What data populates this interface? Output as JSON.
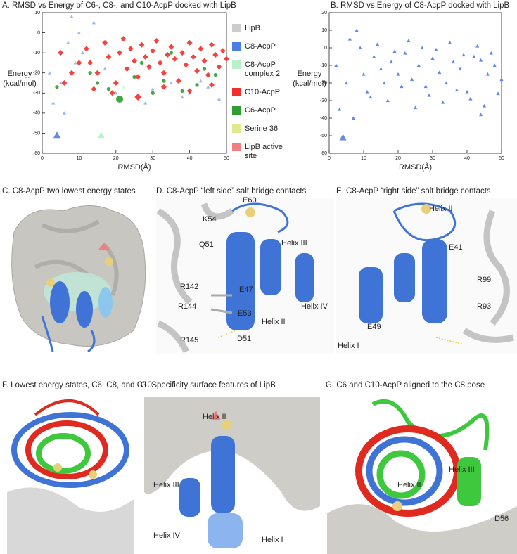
{
  "chart_data": [
    {
      "type": "scatter",
      "title": "A. RMSD vs Energy of C6-, C8-, and C10-AcpP docked with LipB",
      "xlabel": "RMSD(Å)",
      "ylabel": [
        "Energy",
        "(kcal/mol)"
      ],
      "xlim": [
        0,
        50
      ],
      "xticks": [
        0,
        10,
        20,
        30,
        40,
        50
      ],
      "ylim": [
        -60,
        10
      ],
      "yticks": [
        -60,
        -50,
        -40,
        -30,
        -20,
        -10,
        0,
        10
      ],
      "legend": "right",
      "series": [
        {
          "name": "LipB",
          "color": "#cccccc",
          "marker": "square",
          "x": [],
          "values": []
        },
        {
          "name": "C8-AcpP",
          "color": "#4a7fe6",
          "marker": "triangle",
          "x": [
            4,
            3,
            5,
            7,
            8,
            6,
            9,
            2,
            11,
            14,
            20,
            25,
            30,
            35,
            40,
            45,
            48,
            17,
            28,
            38,
            43,
            10
          ],
          "values": [
            -51,
            -35,
            -25,
            -5,
            8,
            -40,
            -15,
            -20,
            -10,
            5,
            -30,
            -22,
            -28,
            -25,
            -30,
            -27,
            -33,
            -18,
            -35,
            -32,
            -24,
            0
          ]
        },
        {
          "name": "C8-AcpP complex 2",
          "color": "#b8f0c8",
          "marker": "triangle",
          "x": [
            16,
            14,
            22,
            30,
            42
          ],
          "values": [
            -51,
            -30,
            -27,
            -29,
            -26
          ]
        },
        {
          "name": "C10-AcpP",
          "color": "#f0302a",
          "marker": "diamond",
          "x": [
            12,
            13,
            15,
            17,
            18,
            20,
            21,
            22,
            23,
            24,
            25,
            26,
            27,
            28,
            29,
            30,
            31,
            32,
            33,
            34,
            35,
            36,
            37,
            38,
            39,
            40,
            41,
            42,
            43,
            44,
            45,
            46,
            47,
            48,
            49,
            50,
            14,
            19,
            26,
            33,
            40,
            46,
            8,
            10,
            5,
            6
          ],
          "values": [
            -8,
            -15,
            -20,
            -5,
            -12,
            -25,
            -10,
            -3,
            -18,
            -8,
            -14,
            -22,
            -6,
            -12,
            -17,
            -9,
            -4,
            -15,
            -20,
            -11,
            -7,
            -13,
            -24,
            -10,
            -16,
            -5,
            -12,
            -19,
            -8,
            -14,
            -21,
            -6,
            -11,
            -17,
            -9,
            -13,
            -28,
            -30,
            -32,
            -27,
            -29,
            -26,
            -20,
            -15,
            -10,
            -25
          ]
        },
        {
          "name": "C6-AcpP",
          "color": "#2e9e2e",
          "marker": "circle",
          "x": [
            4,
            13,
            15,
            18,
            21,
            25,
            30,
            33,
            38,
            42,
            47,
            27,
            35,
            44
          ],
          "values": [
            -27,
            -20,
            -25,
            -28,
            -33,
            -22,
            -30,
            -24,
            -29,
            -26,
            -21,
            -15,
            -10,
            -18
          ]
        },
        {
          "name": "Serine 36",
          "color": "#e3e88e",
          "marker": "square",
          "x": [],
          "values": []
        },
        {
          "name": "LipB active site",
          "color": "#f08080",
          "marker": "square",
          "x": [],
          "values": []
        }
      ]
    },
    {
      "type": "scatter",
      "title": "B. RMSD vs Energy of C8-AcpP docked with LipB",
      "xlabel": "RMSD(Å)",
      "ylabel": [
        "Energy",
        "(kcal/mol)"
      ],
      "xlim": [
        0,
        50
      ],
      "xticks": [
        0,
        10,
        20,
        30,
        40,
        50
      ],
      "ylim": [
        -60,
        20
      ],
      "yticks": [
        -60,
        -50,
        -40,
        -30,
        -20,
        -10,
        0,
        10,
        20
      ],
      "series": [
        {
          "color": "#4a7fe6",
          "marker": "triangle",
          "x": [
            4,
            3,
            5,
            2,
            6,
            7,
            8,
            9,
            10,
            11,
            13,
            15,
            16,
            18,
            20,
            22,
            24,
            26,
            28,
            30,
            32,
            34,
            36,
            38,
            40,
            42,
            44,
            46,
            48,
            50,
            12,
            17,
            21,
            25,
            29,
            33,
            37,
            41,
            45,
            49,
            14,
            19,
            23,
            27,
            31,
            35,
            39,
            43,
            47,
            44
          ],
          "values": [
            -51,
            -35,
            -20,
            -10,
            5,
            -40,
            10,
            0,
            -15,
            -25,
            -5,
            -12,
            -20,
            -8,
            -15,
            -3,
            -18,
            -10,
            -22,
            -6,
            -14,
            -20,
            -8,
            -12,
            -25,
            -5,
            -38,
            -15,
            -10,
            -18,
            -28,
            -30,
            -22,
            -34,
            -27,
            -31,
            -24,
            -29,
            -33,
            -26,
            2,
            -2,
            4,
            0,
            -1,
            3,
            -4,
            1,
            -3,
            -7
          ]
        }
      ]
    }
  ],
  "panels": [
    {
      "title": "C. C8-AcpP two lowest energy states"
    },
    {
      "title": "D. C8-AcpP “left side” salt bridge contacts",
      "labels": [
        "E60",
        "K54",
        "Q51",
        "Helix III",
        "R142",
        "E47",
        "R144",
        "E53",
        "Helix IV",
        "Helix II",
        "R145",
        "D51"
      ]
    },
    {
      "title": "E. C8-AcpP “right side” salt bridge contacts",
      "labels": [
        "Helix II",
        "E41",
        "R99",
        "R93",
        "E49",
        "Helix I"
      ]
    },
    {
      "title": "F. Lowest energy states, C6, C8, and C10"
    },
    {
      "title": "G. Specificity surface features of LipB",
      "labels": [
        "Helix II",
        "Helix III",
        "Helix IV",
        "Helix I"
      ]
    },
    {
      "title": "G. C6 and C10-AcpP aligned to the C8 pose",
      "labels": [
        "Helix III",
        "Helix II",
        "D56"
      ]
    }
  ]
}
